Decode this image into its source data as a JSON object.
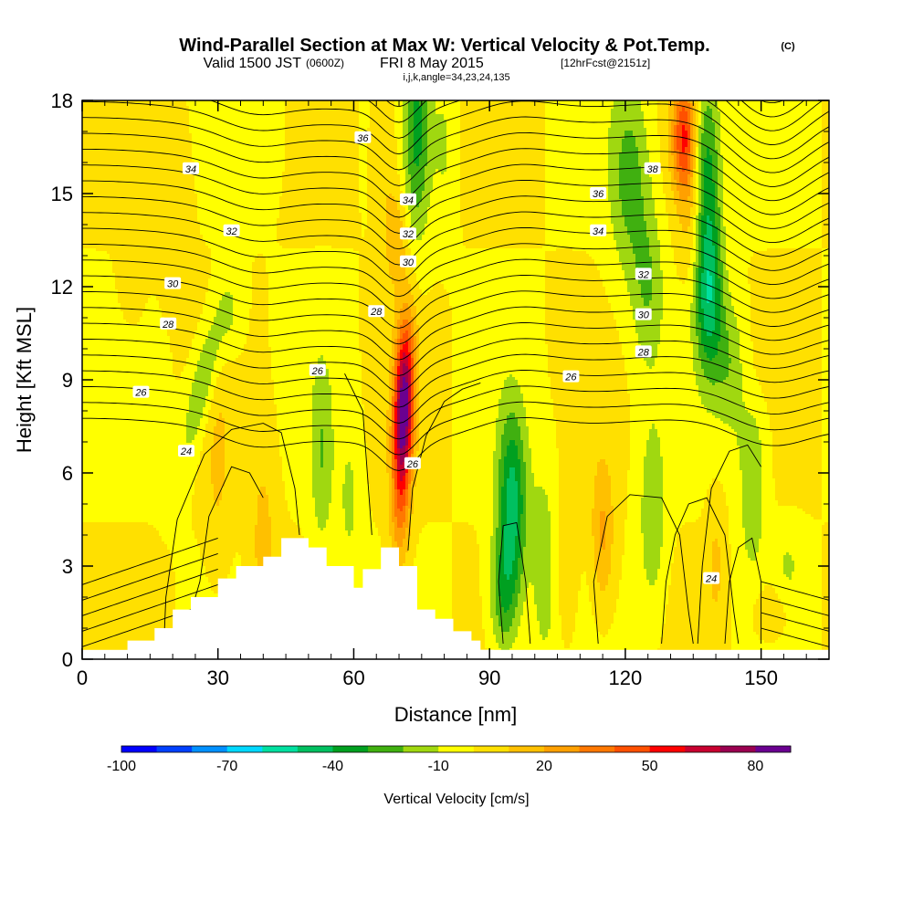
{
  "header": {
    "title": "Wind-Parallel Section at Max W: Vertical Velocity & Pot.Temp.",
    "copyright": "(C)",
    "valid_prefix": "Valid 1500 JST",
    "valid_utc": "(0600Z)",
    "valid_date": "FRI 8 May 2015",
    "forecast": "[12hrFcst@2151z]",
    "indices": "i,j,k,angle=34,23,24,135"
  },
  "chart_data": {
    "type": "heatmap",
    "xlabel": "Distance [nm]",
    "ylabel": "Height [Kft MSL]",
    "xlim": [
      0,
      165
    ],
    "ylim": [
      0,
      18
    ],
    "x_ticks": [
      0,
      30,
      60,
      90,
      120,
      150
    ],
    "y_ticks": [
      0,
      3,
      6,
      9,
      12,
      15,
      18
    ],
    "grid": false,
    "colorbar": {
      "title": "Vertical Velocity [cm/s]",
      "placement": "bottom",
      "min": -100,
      "max": 90,
      "step": 10,
      "tick_values": [
        -100,
        -70,
        -40,
        -10,
        20,
        50,
        80
      ],
      "tick_labels": [
        "-100",
        "-70",
        "-40",
        "-10",
        "20",
        "50",
        "80"
      ],
      "colors": [
        "#0000ff",
        "#0040ff",
        "#0090ff",
        "#00d8ff",
        "#00e0a0",
        "#00c060",
        "#00a020",
        "#40b010",
        "#a0d810",
        "#ffff00",
        "#ffe000",
        "#ffc000",
        "#ffa000",
        "#ff7800",
        "#ff5000",
        "#ff0000",
        "#c80030",
        "#9a0050",
        "#6a0090"
      ]
    },
    "cells": {
      "description_fields": [
        "x_nm",
        "z_kft",
        "w_cms"
      ],
      "grid_x": [
        0,
        10,
        20,
        30,
        40,
        50,
        60,
        65,
        70,
        72,
        75,
        80,
        90,
        95,
        100,
        110,
        115,
        120,
        125,
        130,
        133,
        136,
        140,
        145,
        150,
        160,
        165
      ],
      "grid_z": [
        0,
        1,
        2,
        3,
        4,
        5,
        6,
        7,
        8,
        9,
        10,
        11,
        12,
        13,
        14,
        15,
        16,
        17,
        18
      ]
    },
    "terrain": {
      "x": [
        10,
        16,
        20,
        24,
        30,
        34,
        40,
        44,
        50,
        54,
        60,
        62,
        66,
        70,
        74,
        78,
        82,
        86,
        88
      ],
      "z": [
        0.6,
        1.0,
        1.6,
        2.0,
        2.6,
        3.0,
        3.3,
        3.9,
        3.6,
        3.0,
        2.3,
        2.9,
        3.6,
        3.0,
        1.6,
        1.3,
        0.9,
        0.6,
        0.3
      ]
    },
    "contours": [
      {
        "label": "24",
        "value": 24,
        "label_at": [
          [
            23,
            6.7
          ],
          [
            139,
            2.6
          ]
        ]
      },
      {
        "label": "26",
        "value": 26,
        "label_at": [
          [
            13,
            8.6
          ],
          [
            52,
            9.3
          ],
          [
            73,
            6.3
          ],
          [
            108,
            9.1
          ]
        ]
      },
      {
        "label": "28",
        "value": 28,
        "label_at": [
          [
            19,
            10.8
          ],
          [
            65,
            11.2
          ],
          [
            124,
            9.9
          ]
        ]
      },
      {
        "label": "30",
        "value": 30,
        "label_at": [
          [
            20,
            12.1
          ],
          [
            72,
            12.8
          ],
          [
            124,
            11.1
          ]
        ]
      },
      {
        "label": "32",
        "value": 32,
        "label_at": [
          [
            33,
            13.8
          ],
          [
            72,
            13.7
          ],
          [
            124,
            12.4
          ]
        ]
      },
      {
        "label": "34",
        "value": 34,
        "label_at": [
          [
            24,
            15.8
          ],
          [
            72,
            14.8
          ],
          [
            114,
            13.8
          ]
        ]
      },
      {
        "label": "36",
        "value": 36,
        "label_at": [
          [
            62,
            16.8
          ],
          [
            114,
            15.0
          ]
        ]
      },
      {
        "label": "38",
        "value": 38,
        "label_at": [
          [
            126,
            15.8
          ]
        ]
      }
    ]
  }
}
